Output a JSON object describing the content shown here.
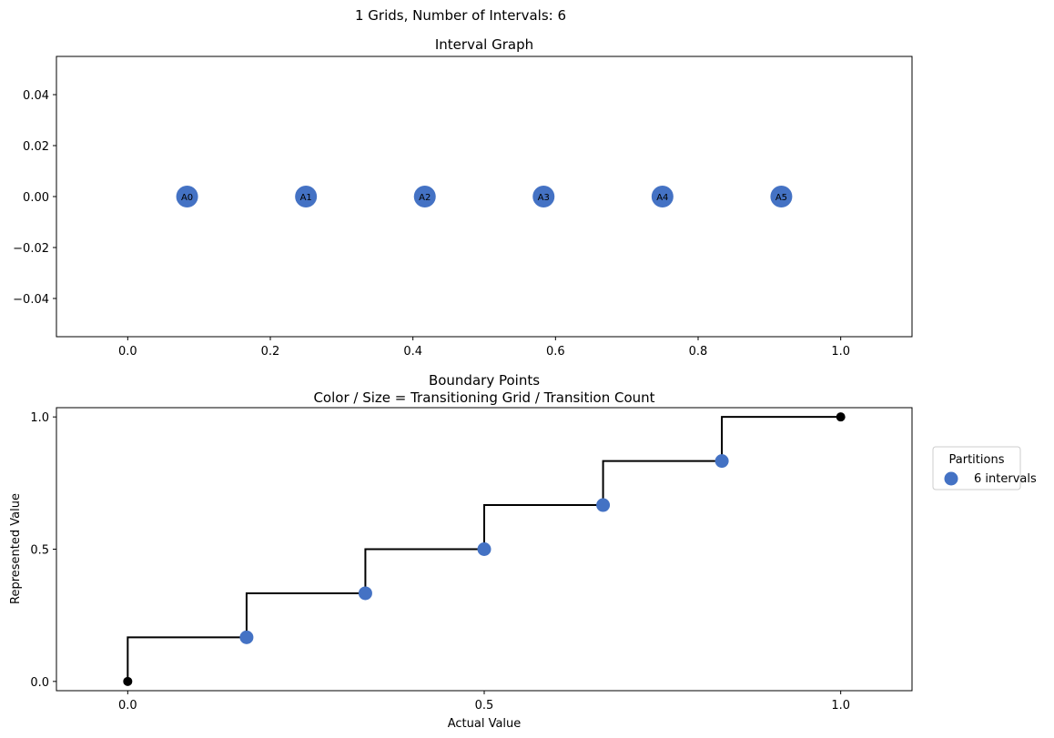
{
  "suptitle": "1 Grids, Number of Intervals: 6",
  "chart_data": [
    {
      "type": "scatter",
      "title": "Interval Graph",
      "xlabel": "",
      "ylabel": "",
      "xlim": [
        -0.1,
        1.1
      ],
      "ylim": [
        -0.055,
        0.055
      ],
      "xticks": [
        0.0,
        0.2,
        0.4,
        0.6,
        0.8,
        1.0
      ],
      "xtick_labels": [
        "0.0",
        "0.2",
        "0.4",
        "0.6",
        "0.8",
        "1.0"
      ],
      "yticks": [
        0.04,
        0.02,
        0.0,
        -0.02,
        -0.04
      ],
      "ytick_labels": [
        "0.04",
        "0.02",
        "0.00",
        "−0.02",
        "−0.04"
      ],
      "grid": false,
      "points": [
        {
          "label": "A0",
          "x": 0.0833,
          "y": 0.0
        },
        {
          "label": "A1",
          "x": 0.25,
          "y": 0.0
        },
        {
          "label": "A2",
          "x": 0.4167,
          "y": 0.0
        },
        {
          "label": "A3",
          "x": 0.5833,
          "y": 0.0
        },
        {
          "label": "A4",
          "x": 0.75,
          "y": 0.0
        },
        {
          "label": "A5",
          "x": 0.9167,
          "y": 0.0
        }
      ],
      "marker_color": "#4472c4"
    },
    {
      "type": "line",
      "title": "Boundary Points\nColor / Size = Transitioning Grid / Transition Count",
      "title_lines": [
        "Boundary Points",
        "Color / Size = Transitioning Grid / Transition Count"
      ],
      "xlabel": "Actual Value",
      "ylabel": "Represented Value",
      "xlim": [
        -0.1,
        1.1
      ],
      "ylim": [
        -0.035,
        1.035
      ],
      "xticks": [
        0.0,
        0.5,
        1.0
      ],
      "xtick_labels": [
        "0.0",
        "0.5",
        "1.0"
      ],
      "yticks": [
        1.0,
        0.5,
        0.0
      ],
      "ytick_labels": [
        "1.0",
        "0.5",
        "0.0"
      ],
      "grid": false,
      "step": {
        "x": [
          0.0,
          0.0,
          0.1667,
          0.1667,
          0.3333,
          0.3333,
          0.5,
          0.5,
          0.6667,
          0.6667,
          0.8333,
          0.8333,
          1.0
        ],
        "y": [
          0.0,
          0.1667,
          0.1667,
          0.3333,
          0.3333,
          0.5,
          0.5,
          0.6667,
          0.6667,
          0.8333,
          0.8333,
          1.0,
          1.0
        ],
        "color": "#000000"
      },
      "endpoints": [
        {
          "x": 0.0,
          "y": 0.0
        },
        {
          "x": 1.0,
          "y": 1.0
        }
      ],
      "series": [
        {
          "name": "6 intervals",
          "color": "#4472c4",
          "x": [
            0.1667,
            0.3333,
            0.5,
            0.6667,
            0.8333
          ],
          "y": [
            0.1667,
            0.3333,
            0.5,
            0.6667,
            0.8333
          ]
        }
      ],
      "legend": {
        "title": "Partitions",
        "placement": "outside-right",
        "entries": [
          "6 intervals"
        ]
      }
    }
  ]
}
